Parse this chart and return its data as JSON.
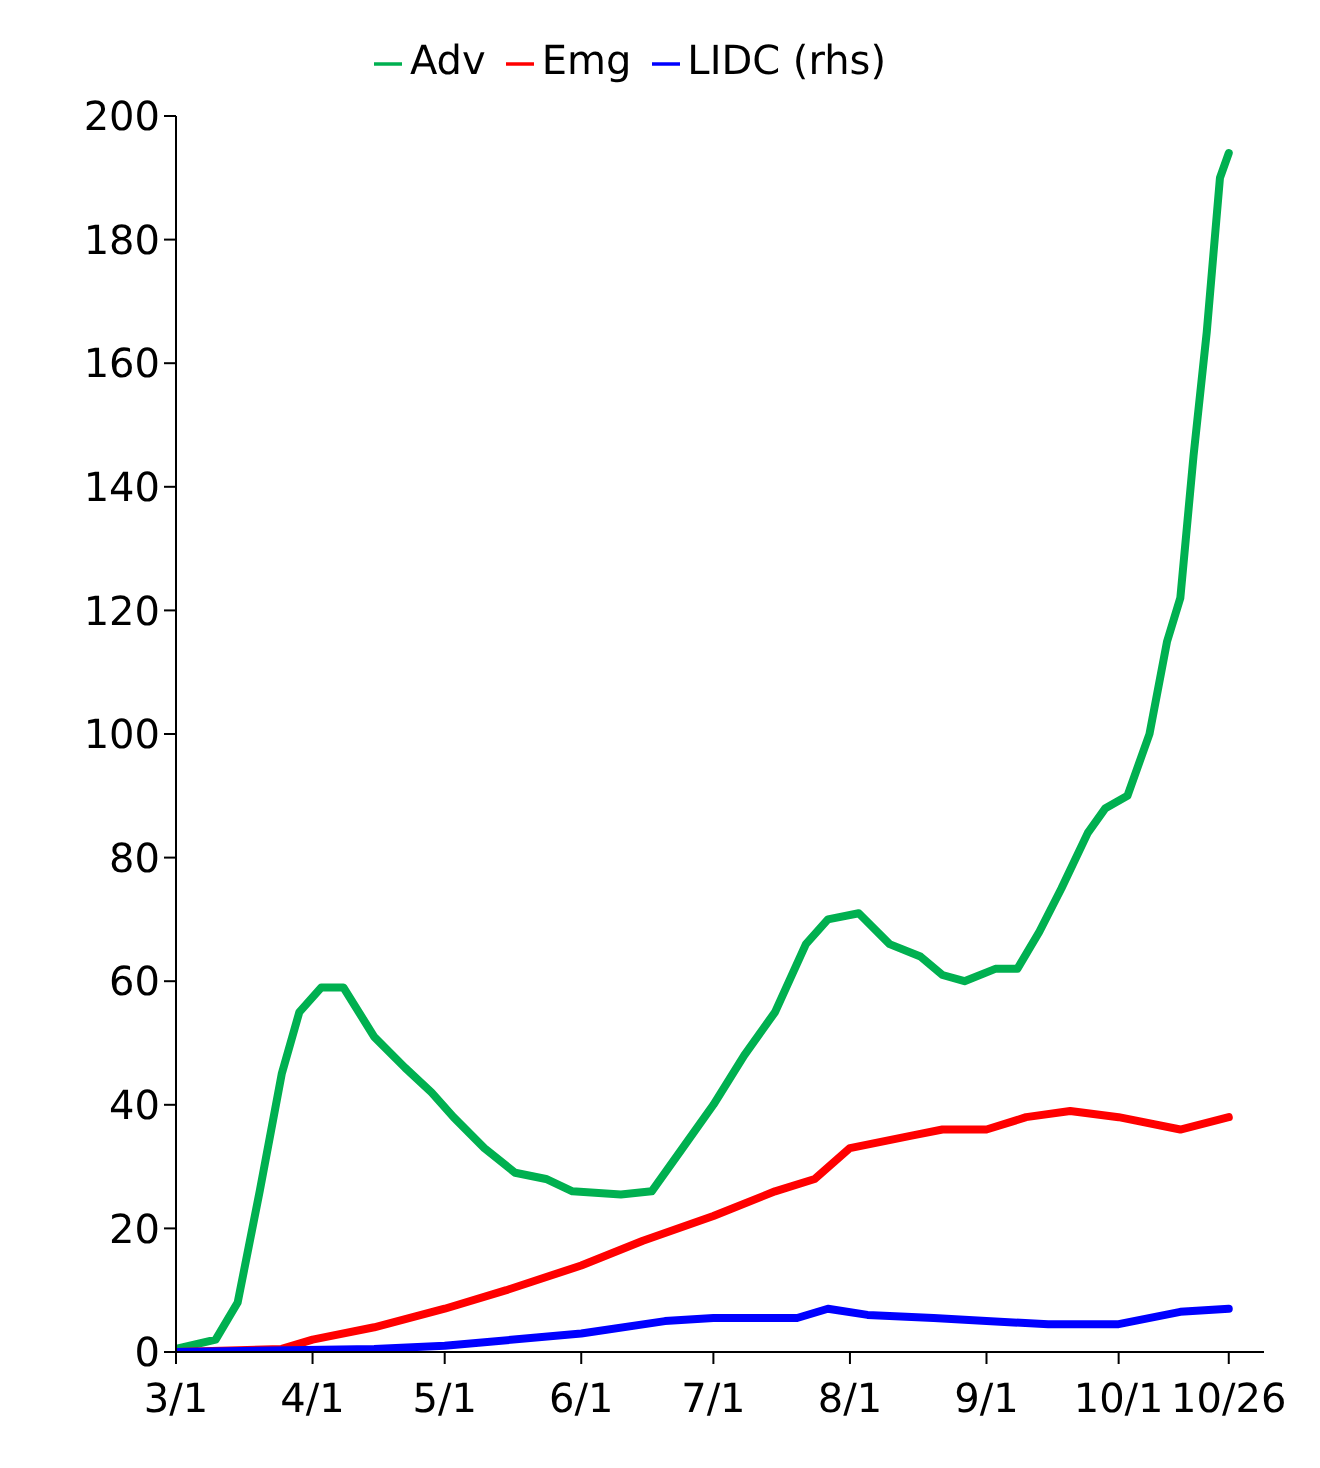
{
  "chart_data": {
    "type": "line",
    "xlim": [
      "--03-01",
      "--11-03"
    ],
    "xticks": [
      {
        "value": "--03-01",
        "label": "3/1"
      },
      {
        "value": "--04-01",
        "label": "4/1"
      },
      {
        "value": "--05-01",
        "label": "5/1"
      },
      {
        "value": "--06-01",
        "label": "6/1"
      },
      {
        "value": "--07-01",
        "label": "7/1"
      },
      {
        "value": "--08-01",
        "label": "8/1"
      },
      {
        "value": "--09-01",
        "label": "9/1"
      },
      {
        "value": "--10-01",
        "label": "10/1"
      },
      {
        "value": "--10-26",
        "label": "10/26"
      }
    ],
    "ylim": [
      0,
      200
    ],
    "yticks": [
      0,
      20,
      40,
      60,
      80,
      100,
      120,
      140,
      160,
      180,
      200
    ],
    "grid": false,
    "legend": "top",
    "marker": "none",
    "line_style": "solid",
    "series": [
      {
        "name": "Adv",
        "color": "#00b050",
        "x": [
          "--03-01",
          "--03-10",
          "--03-15",
          "--03-20",
          "--03-25",
          "--03-29",
          "--04-03",
          "--04-08",
          "--04-15",
          "--04-22",
          "--04-28",
          "--05-03",
          "--05-10",
          "--05-17",
          "--05-24",
          "--05-30",
          "--06-10",
          "--06-17",
          "--06-24",
          "--07-01",
          "--07-08",
          "--07-15",
          "--07-22",
          "--07-27",
          "--08-03",
          "--08-10",
          "--08-17",
          "--08-22",
          "--08-27",
          "--09-03",
          "--09-08",
          "--09-13",
          "--09-18",
          "--09-24",
          "--09-28",
          "--10-03",
          "--10-08",
          "--10-12",
          "--10-15",
          "--10-18",
          "--10-21",
          "--10-24",
          "--10-26"
        ],
        "values": [
          0.5,
          2,
          8,
          26,
          45,
          55,
          59,
          59,
          51,
          46,
          42,
          38,
          33,
          29,
          28,
          26,
          25.5,
          26,
          33,
          40,
          48,
          55,
          66,
          70,
          71,
          66,
          64,
          61,
          60,
          62,
          62,
          68,
          75,
          84,
          88,
          90,
          100,
          115,
          122,
          145,
          165,
          190,
          194
        ]
      },
      {
        "name": "Emg",
        "color": "#ff0000",
        "x": [
          "--03-01",
          "--03-25",
          "--04-01",
          "--04-15",
          "--05-01",
          "--05-15",
          "--06-01",
          "--06-15",
          "--07-01",
          "--07-15",
          "--07-24",
          "--08-01",
          "--08-15",
          "--08-22",
          "--09-01",
          "--09-10",
          "--09-20",
          "--10-01",
          "--10-15",
          "--10-26"
        ],
        "values": [
          0,
          0.5,
          2,
          4,
          7,
          10,
          14,
          18,
          22,
          26,
          28,
          33,
          35,
          36,
          36,
          38,
          39,
          38,
          36,
          38
        ]
      },
      {
        "name": "LIDC (rhs)",
        "color": "#0000ff",
        "x": [
          "--03-01",
          "--04-15",
          "--05-01",
          "--06-01",
          "--06-20",
          "--07-01",
          "--07-20",
          "--07-27",
          "--08-05",
          "--08-20",
          "--09-01",
          "--09-15",
          "--10-01",
          "--10-15",
          "--10-26"
        ],
        "values": [
          0,
          0.5,
          1,
          3,
          5,
          5.5,
          5.5,
          7,
          6,
          5.5,
          5,
          4.5,
          4.5,
          6.5,
          7
        ]
      }
    ]
  }
}
